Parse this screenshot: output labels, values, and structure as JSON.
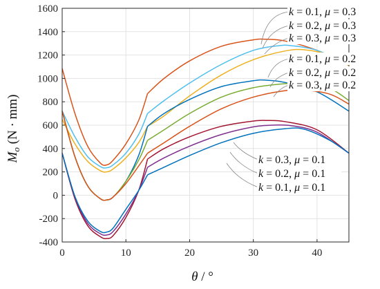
{
  "chart_data": {
    "type": "line",
    "xlabel_parts": [
      "θ",
      " / °"
    ],
    "ylabel_parts": [
      "M",
      "o",
      " (N · mm)"
    ],
    "xlim": [
      0,
      45
    ],
    "ylim": [
      -400,
      1600
    ],
    "xticks": [
      0,
      10,
      20,
      30,
      40
    ],
    "yticks": [
      -400,
      -200,
      0,
      200,
      400,
      600,
      800,
      1000,
      1200,
      1400,
      1600
    ],
    "grid": true,
    "colors": {
      "orange": "#D95319",
      "sky": "#4DBEEE",
      "gold": "#EDB120",
      "blue": "#0072BD",
      "green": "#77AC30",
      "purple": "#7E2F8E",
      "maroon": "#A2142F"
    },
    "series": [
      {
        "name": "k = 0.1, μ = 0.3",
        "color": "#D95319",
        "x": [
          0,
          2,
          4,
          6,
          7,
          8,
          10,
          12,
          13.4,
          16,
          20,
          25,
          30,
          32,
          35,
          40,
          45
        ],
        "y": [
          1085,
          700,
          420,
          275,
          260,
          300,
          440,
          640,
          870,
          1000,
          1150,
          1275,
          1330,
          1335,
          1320,
          1240,
          1110
        ]
      },
      {
        "name": "k = 0.2, μ = 0.3",
        "color": "#4DBEEE",
        "x": [
          0,
          2,
          4,
          6,
          7,
          8,
          10,
          12,
          13.4,
          16,
          20,
          25,
          30,
          34,
          36,
          40,
          45
        ],
        "y": [
          720,
          500,
          330,
          245,
          235,
          260,
          360,
          520,
          700,
          810,
          960,
          1120,
          1240,
          1280,
          1280,
          1240,
          1120
        ]
      },
      {
        "name": "k = 0.3, μ = 0.3",
        "color": "#EDB120",
        "x": [
          0,
          2,
          4,
          6,
          7,
          8,
          10,
          12,
          13.4,
          16,
          20,
          25,
          30,
          35,
          38,
          42,
          45
        ],
        "y": [
          650,
          440,
          290,
          210,
          200,
          225,
          320,
          450,
          590,
          680,
          850,
          1030,
          1160,
          1235,
          1245,
          1200,
          1110
        ]
      },
      {
        "name": "k = 0.1, μ = 0.2",
        "color": "#0072BD",
        "x": [
          0,
          2,
          4,
          6,
          7,
          8,
          10,
          12,
          13.4,
          16,
          20,
          25,
          30,
          32,
          35,
          40,
          45
        ],
        "y": [
          720,
          330,
          80,
          -30,
          -40,
          -15,
          120,
          340,
          590,
          700,
          820,
          930,
          980,
          985,
          965,
          885,
          720
        ]
      },
      {
        "name": "k = 0.2, μ = 0.2",
        "color": "#77AC30",
        "x": [
          0,
          2,
          4,
          6,
          7,
          8,
          10,
          12,
          13.4,
          16,
          20,
          25,
          30,
          35,
          38,
          42,
          45
        ],
        "y": [
          720,
          330,
          80,
          -30,
          -40,
          -15,
          120,
          300,
          470,
          560,
          700,
          840,
          920,
          955,
          955,
          915,
          810
        ]
      },
      {
        "name": "k = 0.3, μ = 0.2",
        "color": "#D95319",
        "x": [
          0,
          2,
          4,
          6,
          7,
          8,
          10,
          12,
          13.4,
          16,
          20,
          25,
          30,
          35,
          38,
          42,
          45
        ],
        "y": [
          720,
          330,
          80,
          -30,
          -40,
          -15,
          100,
          250,
          360,
          450,
          590,
          740,
          840,
          895,
          900,
          865,
          780
        ]
      },
      {
        "name": "k = 0.3, μ = 0.1",
        "color": "#A2142F",
        "x": [
          0,
          2,
          4,
          6,
          7,
          8,
          10,
          12,
          13.4,
          16,
          20,
          25,
          30,
          32,
          35,
          40,
          45
        ],
        "y": [
          360,
          -30,
          -260,
          -355,
          -370,
          -345,
          -190,
          40,
          310,
          400,
          500,
          590,
          635,
          640,
          630,
          560,
          360
        ]
      },
      {
        "name": "k = 0.2, μ = 0.1",
        "color": "#7E2F8E",
        "x": [
          0,
          2,
          4,
          6,
          7,
          8,
          10,
          12,
          13.4,
          16,
          20,
          25,
          30,
          33,
          36,
          40,
          45
        ],
        "y": [
          360,
          -15,
          -240,
          -330,
          -340,
          -310,
          -160,
          40,
          240,
          320,
          420,
          520,
          585,
          600,
          595,
          540,
          360
        ]
      },
      {
        "name": "k = 0.1, μ = 0.1",
        "color": "#0072BD",
        "x": [
          0,
          2,
          4,
          6,
          7,
          8,
          10,
          12,
          13.4,
          16,
          20,
          25,
          30,
          35,
          38,
          42,
          45
        ],
        "y": [
          360,
          -10,
          -220,
          -310,
          -315,
          -280,
          -120,
          40,
          175,
          240,
          340,
          450,
          530,
          570,
          565,
          470,
          360
        ]
      }
    ],
    "annotations": [
      {
        "parts": [
          "k",
          " = 0.1, ",
          "μ",
          " = 0.3"
        ]
      },
      {
        "parts": [
          "k",
          " = 0.2, ",
          "μ",
          " = 0.3"
        ]
      },
      {
        "parts": [
          "k",
          " = 0.3, ",
          "μ",
          " = 0.3"
        ]
      },
      {
        "parts": [
          "k",
          " = 0.1, ",
          "μ",
          " = 0.2"
        ]
      },
      {
        "parts": [
          "k",
          " = 0.2, ",
          "μ",
          " = 0.2"
        ]
      },
      {
        "parts": [
          "k",
          " = 0.3, ",
          "μ",
          " = 0.2"
        ]
      },
      {
        "parts": [
          "k",
          " = 0.3, ",
          "μ",
          " = 0.1"
        ]
      },
      {
        "parts": [
          "k",
          " = 0.2, ",
          "μ",
          " = 0.1"
        ]
      },
      {
        "parts": [
          "k",
          " = 0.1, ",
          "μ",
          " = 0.1"
        ]
      }
    ]
  }
}
